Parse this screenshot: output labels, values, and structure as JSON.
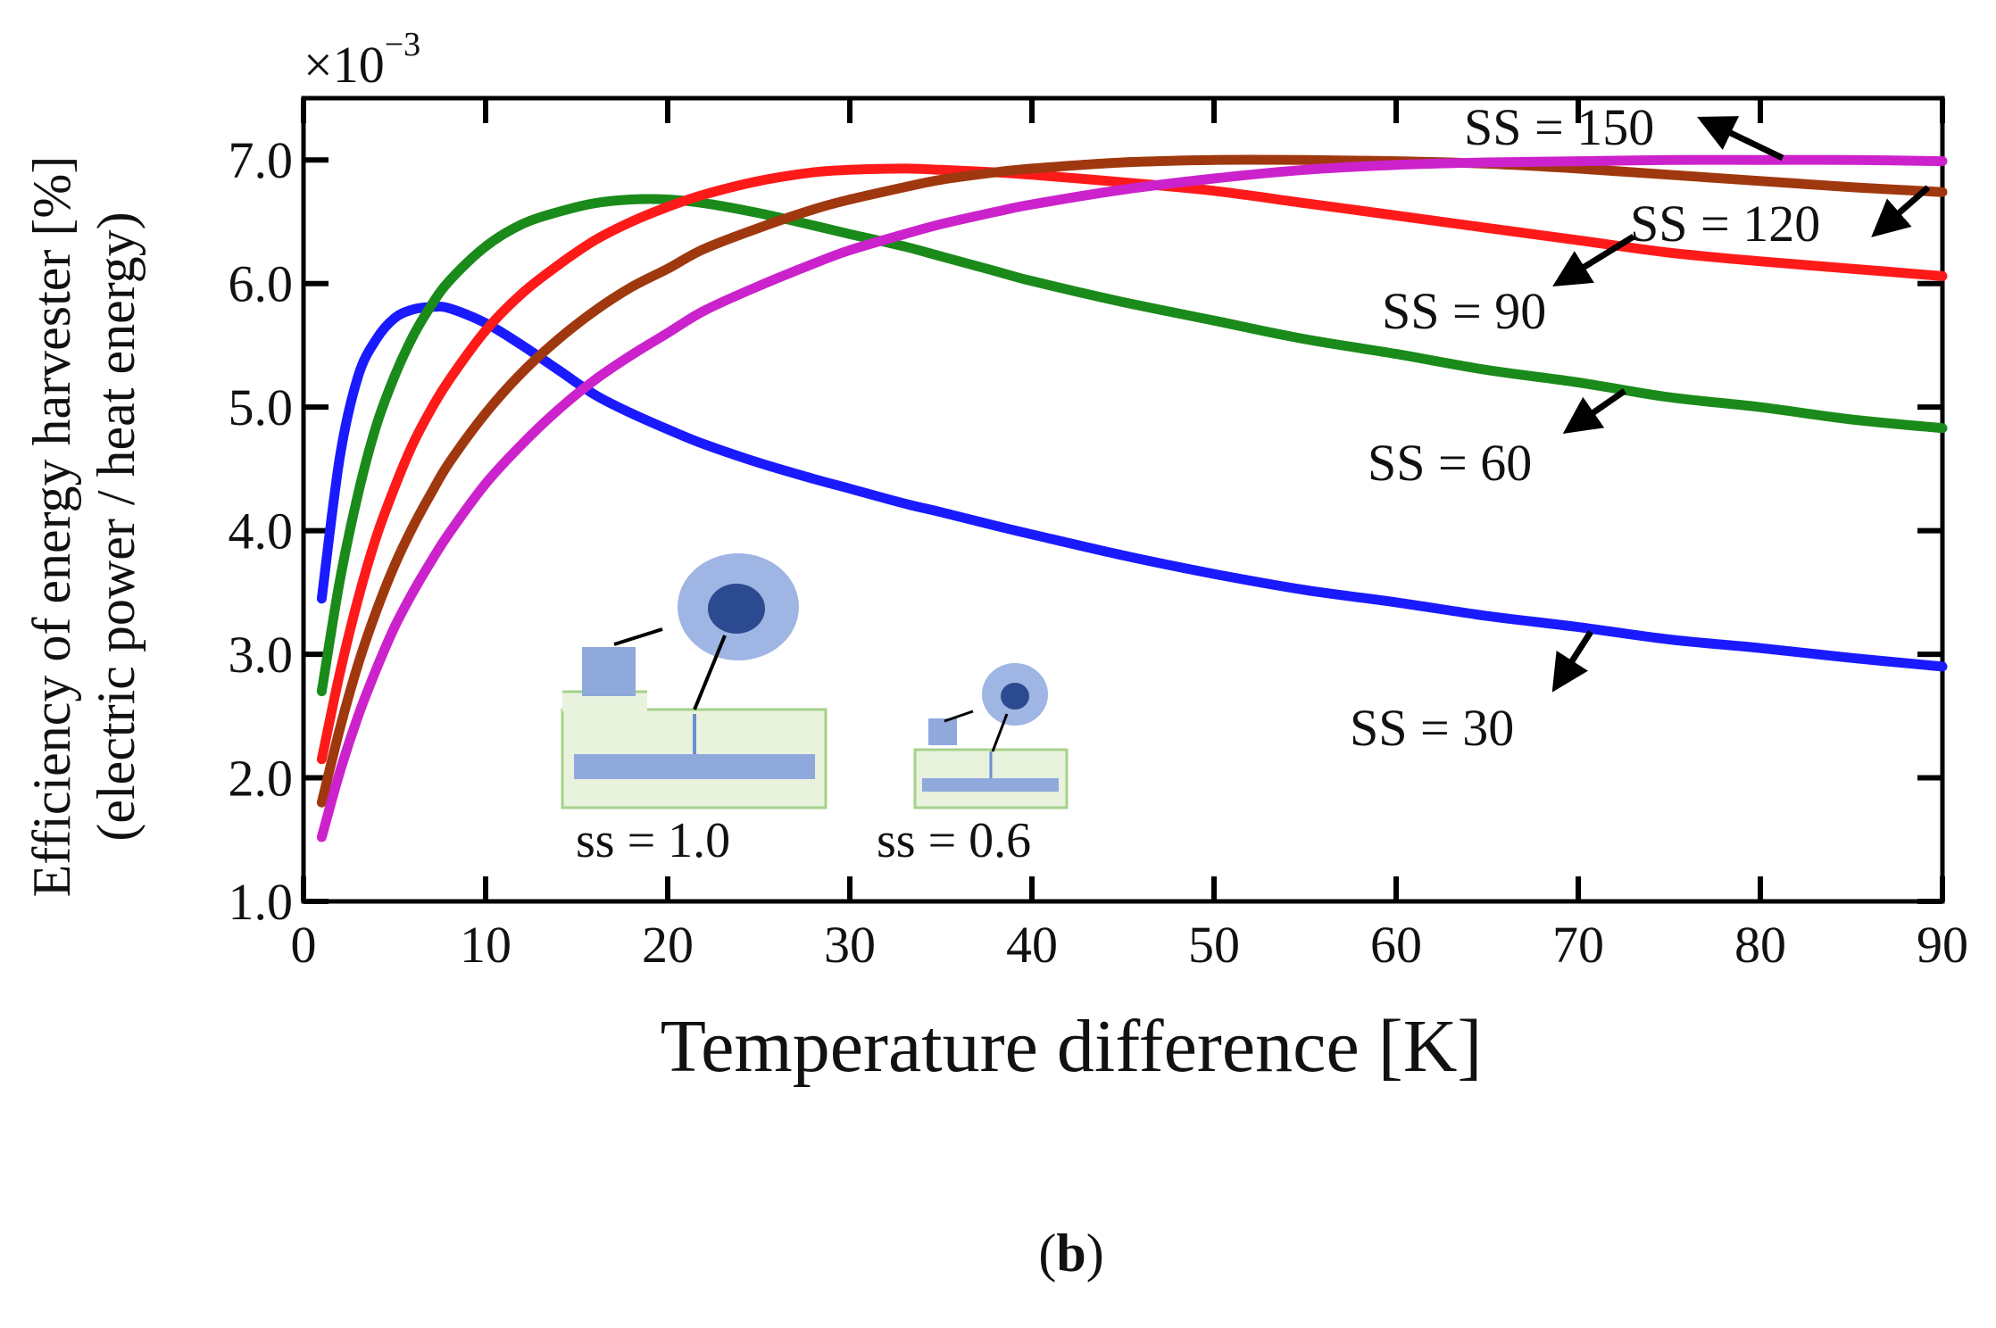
{
  "chart_data": {
    "type": "line",
    "title": "",
    "panel_label": "b",
    "xlabel": "Temperature difference [K]",
    "ylabel_line1": "Efficiency of energy harvester [%]",
    "ylabel_line2": "(electric power / heat energy)",
    "y_multiplier": "×10",
    "y_multiplier_exp": "−3",
    "xlim": [
      0,
      90
    ],
    "ylim": [
      1.0,
      7.5
    ],
    "xticks": [
      0,
      10,
      20,
      30,
      40,
      50,
      60,
      70,
      80,
      90
    ],
    "xtick_labels": [
      "0",
      "10",
      "20",
      "30",
      "40",
      "50",
      "60",
      "70",
      "80",
      "90"
    ],
    "yticks": [
      1.0,
      2.0,
      3.0,
      4.0,
      5.0,
      6.0,
      7.0
    ],
    "ytick_labels": [
      "1.0",
      "2.0",
      "3.0",
      "4.0",
      "5.0",
      "6.0",
      "7.0"
    ],
    "x": [
      1,
      2,
      3,
      4,
      5,
      6,
      7,
      8,
      10,
      12,
      14,
      16,
      18,
      20,
      22,
      25,
      28,
      30,
      33,
      35,
      38,
      40,
      45,
      50,
      55,
      60,
      65,
      70,
      75,
      80,
      85,
      90
    ],
    "series": [
      {
        "name": "SS = 30",
        "color": "#1a1aff",
        "values": [
          3.45,
          4.6,
          5.25,
          5.55,
          5.72,
          5.79,
          5.81,
          5.8,
          5.68,
          5.5,
          5.3,
          5.1,
          4.95,
          4.82,
          4.7,
          4.55,
          4.42,
          4.34,
          4.22,
          4.15,
          4.04,
          3.97,
          3.8,
          3.65,
          3.52,
          3.42,
          3.31,
          3.22,
          3.12,
          3.05,
          2.97,
          2.9
        ]
      },
      {
        "name": "SS = 60",
        "color": "#1a8a1a",
        "values": [
          2.7,
          3.6,
          4.3,
          4.85,
          5.25,
          5.57,
          5.82,
          6.02,
          6.3,
          6.48,
          6.58,
          6.65,
          6.68,
          6.68,
          6.65,
          6.57,
          6.47,
          6.4,
          6.3,
          6.22,
          6.1,
          6.02,
          5.85,
          5.7,
          5.55,
          5.43,
          5.3,
          5.2,
          5.08,
          5.0,
          4.9,
          4.83
        ]
      },
      {
        "name": "SS = 90",
        "color": "#ff1a1a",
        "values": [
          2.15,
          2.85,
          3.45,
          3.95,
          4.35,
          4.7,
          4.98,
          5.22,
          5.62,
          5.92,
          6.15,
          6.35,
          6.5,
          6.62,
          6.72,
          6.83,
          6.9,
          6.92,
          6.93,
          6.92,
          6.9,
          6.88,
          6.82,
          6.75,
          6.65,
          6.55,
          6.45,
          6.35,
          6.25,
          6.18,
          6.12,
          6.06
        ]
      },
      {
        "name": "SS = 120",
        "color": "#a0380f",
        "values": [
          1.8,
          2.4,
          2.92,
          3.35,
          3.72,
          4.03,
          4.3,
          4.55,
          4.95,
          5.28,
          5.55,
          5.78,
          5.97,
          6.12,
          6.28,
          6.45,
          6.6,
          6.68,
          6.78,
          6.84,
          6.9,
          6.93,
          6.98,
          7.0,
          7.0,
          6.99,
          6.97,
          6.93,
          6.88,
          6.83,
          6.78,
          6.74
        ]
      },
      {
        "name": "SS = 150",
        "color": "#cc22cc",
        "values": [
          1.52,
          2.05,
          2.5,
          2.88,
          3.22,
          3.5,
          3.75,
          3.98,
          4.38,
          4.7,
          4.98,
          5.22,
          5.42,
          5.6,
          5.78,
          5.98,
          6.16,
          6.27,
          6.4,
          6.48,
          6.58,
          6.64,
          6.76,
          6.85,
          6.92,
          6.96,
          6.98,
          6.99,
          7.0,
          7.0,
          7.0,
          6.99
        ]
      }
    ],
    "annotations": [
      {
        "text": "SS = 150",
        "series": "SS = 150"
      },
      {
        "text": "SS = 120",
        "series": "SS = 120"
      },
      {
        "text": "SS = 90",
        "series": "SS = 90"
      },
      {
        "text": "SS = 60",
        "series": "SS = 60"
      },
      {
        "text": "SS = 30",
        "series": "SS = 30"
      }
    ],
    "inset_labels": [
      "ss = 1.0",
      "ss = 0.6"
    ]
  },
  "colors": {
    "inset_fill_light": "#e8f2dd",
    "inset_border": "#a6d18b",
    "inset_blue": "#8fa9dc",
    "inset_blue_dark": "#2c4a8f",
    "inset_circle_outer": "#9fb5e3"
  }
}
